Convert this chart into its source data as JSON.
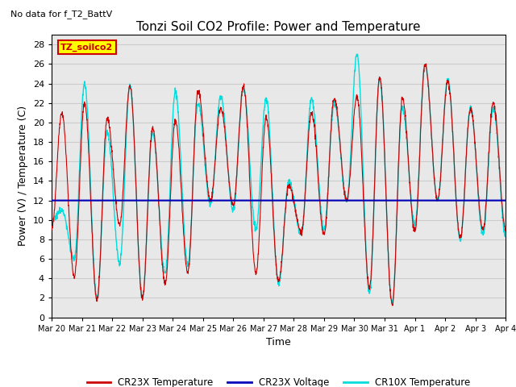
{
  "title": "Tonzi Soil CO2 Profile: Power and Temperature",
  "subtitle": "No data for f_T2_BattV",
  "ylabel": "Power (V) / Temperature (C)",
  "xlabel": "Time",
  "ylim": [
    0,
    29
  ],
  "yticks": [
    0,
    2,
    4,
    6,
    8,
    10,
    12,
    14,
    16,
    18,
    20,
    22,
    24,
    26,
    28
  ],
  "xtick_labels": [
    "Mar 20",
    "Mar 21",
    "Mar 22",
    "Mar 23",
    "Mar 24",
    "Mar 25",
    "Mar 26",
    "Mar 27",
    "Mar 28",
    "Mar 29",
    "Mar 30",
    "Mar 31",
    "Apr 1",
    "Apr 2",
    "Apr 3",
    "Apr 4"
  ],
  "voltage_level": 12.0,
  "voltage_color": "#0000bb",
  "cr23x_color": "#cc0000",
  "cr10x_color": "#00dddd",
  "legend_label_box": "TZ_soilco2",
  "legend_box_color": "#ffff00",
  "legend_box_border": "#cc0000",
  "bg_color": "#ffffff",
  "grid_color": "#cccccc",
  "title_fontsize": 11,
  "axis_fontsize": 9,
  "tick_fontsize": 8,
  "peak_heights_cr23x": [
    21.0,
    22.0,
    20.4,
    23.8,
    19.5,
    20.2,
    23.3,
    21.5,
    23.7,
    20.5,
    13.5,
    21.0,
    22.5,
    22.7,
    24.6,
    22.5,
    25.9,
    24.2,
    21.4,
    22.0
  ],
  "trough_depths_cr23x": [
    9.0,
    4.2,
    1.8,
    9.5,
    2.0,
    3.5,
    4.6,
    12.0,
    11.5,
    4.5,
    3.7,
    8.8,
    8.5,
    12.0,
    3.0,
    1.2,
    8.9,
    12.0,
    8.2,
    9.0
  ],
  "peak_heights_cr10x": [
    11.0,
    24.0,
    19.0,
    23.8,
    19.0,
    23.2,
    22.0,
    22.7,
    23.5,
    22.5,
    14.0,
    22.5,
    22.0,
    27.0,
    24.5,
    21.5,
    26.0,
    24.5,
    21.5,
    21.5
  ],
  "trough_depths_cr10x": [
    10.0,
    6.0,
    2.0,
    5.5,
    2.0,
    4.5,
    5.5,
    11.5,
    11.0,
    9.0,
    3.5,
    8.5,
    9.0,
    12.0,
    2.5,
    1.5,
    9.5,
    12.0,
    8.0,
    8.5
  ]
}
